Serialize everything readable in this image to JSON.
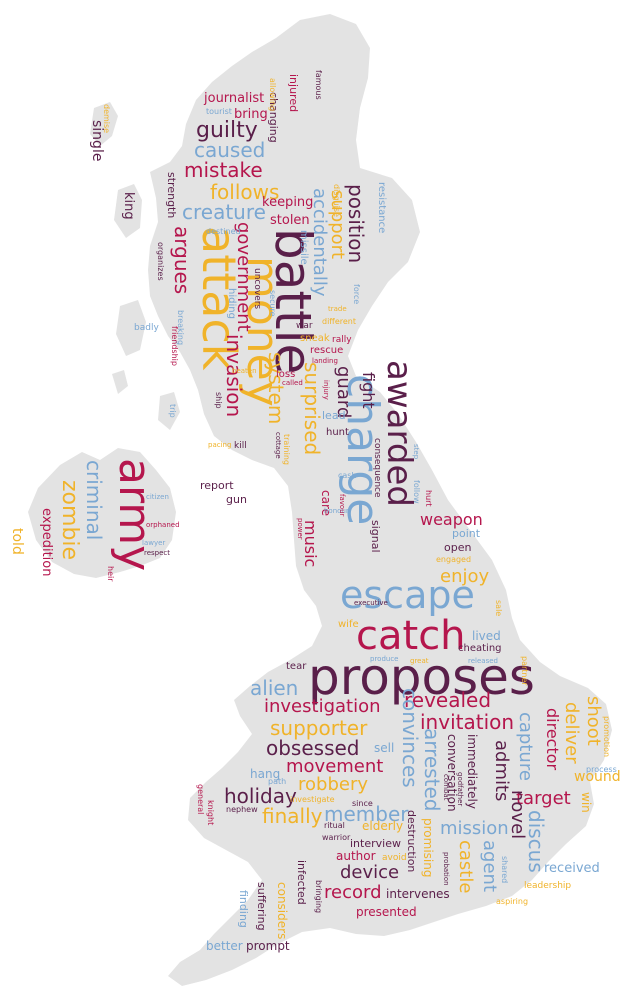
{
  "palette": {
    "maroon": "#5a1f4a",
    "crimson": "#b5164d",
    "blue": "#7aa7d2",
    "gold": "#f0b32a",
    "land": "#e3e3e3"
  },
  "words": [
    {
      "text": "proposes",
      "color": "maroon"
    },
    {
      "text": "catch",
      "color": "crimson"
    },
    {
      "text": "escape",
      "color": "blue"
    },
    {
      "text": "army",
      "color": "crimson"
    },
    {
      "text": "battle",
      "color": "maroon"
    },
    {
      "text": "attack",
      "color": "gold"
    },
    {
      "text": "money",
      "color": "gold"
    },
    {
      "text": "charge",
      "color": "blue"
    },
    {
      "text": "awarded",
      "color": "maroon"
    },
    {
      "text": "criminal",
      "color": "blue"
    },
    {
      "text": "zombie",
      "color": "gold"
    },
    {
      "text": "expedition",
      "color": "crimson"
    },
    {
      "text": "told",
      "color": "gold"
    },
    {
      "text": "guilty",
      "color": "maroon"
    },
    {
      "text": "caused",
      "color": "blue"
    },
    {
      "text": "mistake",
      "color": "crimson"
    },
    {
      "text": "follows",
      "color": "gold"
    },
    {
      "text": "creature",
      "color": "blue"
    },
    {
      "text": "argues",
      "color": "crimson"
    },
    {
      "text": "government",
      "color": "crimson"
    },
    {
      "text": "invasion",
      "color": "crimson"
    },
    {
      "text": "system",
      "color": "gold"
    },
    {
      "text": "surprised",
      "color": "gold"
    },
    {
      "text": "guard",
      "color": "maroon"
    },
    {
      "text": "fight",
      "color": "maroon"
    },
    {
      "text": "accidentally",
      "color": "blue"
    },
    {
      "text": "support",
      "color": "gold"
    },
    {
      "text": "position",
      "color": "maroon"
    },
    {
      "text": "journalist",
      "color": "crimson"
    },
    {
      "text": "bring",
      "color": "crimson"
    },
    {
      "text": "injured",
      "color": "crimson"
    },
    {
      "text": "changing",
      "color": "maroon"
    },
    {
      "text": "allowing",
      "color": "gold"
    },
    {
      "text": "famous",
      "color": "maroon"
    },
    {
      "text": "tourist",
      "color": "blue"
    },
    {
      "text": "demise",
      "color": "gold"
    },
    {
      "text": "single",
      "color": "maroon"
    },
    {
      "text": "king",
      "color": "maroon"
    },
    {
      "text": "strength",
      "color": "maroon"
    },
    {
      "text": "keeping",
      "color": "crimson"
    },
    {
      "text": "stolen",
      "color": "crimson"
    },
    {
      "text": "destined",
      "color": "blue"
    },
    {
      "text": "missile",
      "color": "blue"
    },
    {
      "text": "disguise",
      "color": "gold"
    },
    {
      "text": "resistance",
      "color": "blue"
    },
    {
      "text": "organizes",
      "color": "maroon"
    },
    {
      "text": "hiding",
      "color": "blue"
    },
    {
      "text": "uncovers",
      "color": "maroon"
    },
    {
      "text": "secure",
      "color": "blue"
    },
    {
      "text": "badly",
      "color": "blue"
    },
    {
      "text": "breaking",
      "color": "blue"
    },
    {
      "text": "friendship",
      "color": "crimson"
    },
    {
      "text": "war",
      "color": "maroon"
    },
    {
      "text": "different",
      "color": "gold"
    },
    {
      "text": "force",
      "color": "blue"
    },
    {
      "text": "trade",
      "color": "gold"
    },
    {
      "text": "sneak",
      "color": "gold"
    },
    {
      "text": "rescue",
      "color": "crimson"
    },
    {
      "text": "rally",
      "color": "crimson"
    },
    {
      "text": "landing",
      "color": "crimson"
    },
    {
      "text": "loss",
      "color": "crimson"
    },
    {
      "text": "called",
      "color": "crimson"
    },
    {
      "text": "beaten",
      "color": "gold"
    },
    {
      "text": "ship",
      "color": "maroon"
    },
    {
      "text": "trip",
      "color": "blue"
    },
    {
      "text": "cottage",
      "color": "maroon"
    },
    {
      "text": "lead",
      "color": "blue"
    },
    {
      "text": "hunt",
      "color": "maroon"
    },
    {
      "text": "injury",
      "color": "crimson"
    },
    {
      "text": "kill",
      "color": "maroon"
    },
    {
      "text": "pacing",
      "color": "gold"
    },
    {
      "text": "training",
      "color": "gold"
    },
    {
      "text": "report",
      "color": "maroon"
    },
    {
      "text": "gun",
      "color": "maroon"
    },
    {
      "text": "cash",
      "color": "blue"
    },
    {
      "text": "care",
      "color": "crimson"
    },
    {
      "text": "consequence",
      "color": "maroon"
    },
    {
      "text": "signal",
      "color": "maroon"
    },
    {
      "text": "music",
      "color": "crimson"
    },
    {
      "text": "weapon",
      "color": "crimson"
    },
    {
      "text": "enjoy",
      "color": "gold"
    },
    {
      "text": "point",
      "color": "blue"
    },
    {
      "text": "open",
      "color": "maroon"
    },
    {
      "text": "honour",
      "color": "blue"
    },
    {
      "text": "favour",
      "color": "crimson"
    },
    {
      "text": "power",
      "color": "crimson"
    },
    {
      "text": "engaged",
      "color": "gold"
    },
    {
      "text": "hurt",
      "color": "crimson"
    },
    {
      "text": "follow",
      "color": "blue"
    },
    {
      "text": "step",
      "color": "blue"
    },
    {
      "text": "executive",
      "color": "maroon"
    },
    {
      "text": "wife",
      "color": "gold"
    },
    {
      "text": "lived",
      "color": "blue"
    },
    {
      "text": "cheating",
      "color": "maroon"
    },
    {
      "text": "sale",
      "color": "gold"
    },
    {
      "text": "citizen",
      "color": "blue"
    },
    {
      "text": "orphaned",
      "color": "crimson"
    },
    {
      "text": "lawyer",
      "color": "blue"
    },
    {
      "text": "respect",
      "color": "maroon"
    },
    {
      "text": "heir",
      "color": "crimson"
    },
    {
      "text": "alien",
      "color": "blue"
    },
    {
      "text": "tear",
      "color": "maroon"
    },
    {
      "text": "produce",
      "color": "blue"
    },
    {
      "text": "great",
      "color": "gold"
    },
    {
      "text": "released",
      "color": "blue"
    },
    {
      "text": "partner",
      "color": "gold"
    },
    {
      "text": "investigation",
      "color": "crimson"
    },
    {
      "text": "revealed",
      "color": "crimson"
    },
    {
      "text": "supporter",
      "color": "gold"
    },
    {
      "text": "convinces",
      "color": "blue"
    },
    {
      "text": "invitation",
      "color": "crimson"
    },
    {
      "text": "director",
      "color": "crimson"
    },
    {
      "text": "deliver",
      "color": "gold"
    },
    {
      "text": "shoot",
      "color": "gold"
    },
    {
      "text": "promotion",
      "color": "gold"
    },
    {
      "text": "obsessed",
      "color": "maroon"
    },
    {
      "text": "sell",
      "color": "blue"
    },
    {
      "text": "arrested",
      "color": "blue"
    },
    {
      "text": "conversation",
      "color": "maroon"
    },
    {
      "text": "immediately",
      "color": "maroon"
    },
    {
      "text": "capture",
      "color": "blue"
    },
    {
      "text": "hang",
      "color": "blue"
    },
    {
      "text": "movement",
      "color": "crimson"
    },
    {
      "text": "admits",
      "color": "maroon"
    },
    {
      "text": "process",
      "color": "blue"
    },
    {
      "text": "wound",
      "color": "gold"
    },
    {
      "text": "holiday",
      "color": "maroon"
    },
    {
      "text": "robbery",
      "color": "gold"
    },
    {
      "text": "target",
      "color": "crimson"
    },
    {
      "text": "win",
      "color": "gold"
    },
    {
      "text": "path",
      "color": "blue"
    },
    {
      "text": "general",
      "color": "crimson"
    },
    {
      "text": "knight",
      "color": "crimson"
    },
    {
      "text": "nephew",
      "color": "maroon"
    },
    {
      "text": "investigate",
      "color": "gold"
    },
    {
      "text": "finally",
      "color": "gold"
    },
    {
      "text": "member",
      "color": "blue"
    },
    {
      "text": "combat",
      "color": "maroon"
    },
    {
      "text": "godfather",
      "color": "maroon"
    },
    {
      "text": "mission",
      "color": "blue"
    },
    {
      "text": "novel",
      "color": "maroon"
    },
    {
      "text": "discus",
      "color": "blue"
    },
    {
      "text": "ritual",
      "color": "maroon"
    },
    {
      "text": "since",
      "color": "maroon"
    },
    {
      "text": "elderly",
      "color": "gold"
    },
    {
      "text": "destruction",
      "color": "maroon"
    },
    {
      "text": "promising",
      "color": "gold"
    },
    {
      "text": "warrior",
      "color": "maroon"
    },
    {
      "text": "interview",
      "color": "maroon"
    },
    {
      "text": "author",
      "color": "crimson"
    },
    {
      "text": "avoid",
      "color": "gold"
    },
    {
      "text": "device",
      "color": "maroon"
    },
    {
      "text": "castle",
      "color": "gold"
    },
    {
      "text": "agent",
      "color": "blue"
    },
    {
      "text": "probation",
      "color": "maroon"
    },
    {
      "text": "shared",
      "color": "blue"
    },
    {
      "text": "received",
      "color": "blue"
    },
    {
      "text": "leadership",
      "color": "gold"
    },
    {
      "text": "infected",
      "color": "maroon"
    },
    {
      "text": "record",
      "color": "crimson"
    },
    {
      "text": "intervenes",
      "color": "maroon"
    },
    {
      "text": "aspiring",
      "color": "gold"
    },
    {
      "text": "presented",
      "color": "crimson"
    },
    {
      "text": "bringing",
      "color": "maroon"
    },
    {
      "text": "suffering",
      "color": "maroon"
    },
    {
      "text": "finding",
      "color": "blue"
    },
    {
      "text": "considers",
      "color": "gold"
    },
    {
      "text": "better",
      "color": "blue"
    },
    {
      "text": "prompt",
      "color": "maroon"
    }
  ]
}
